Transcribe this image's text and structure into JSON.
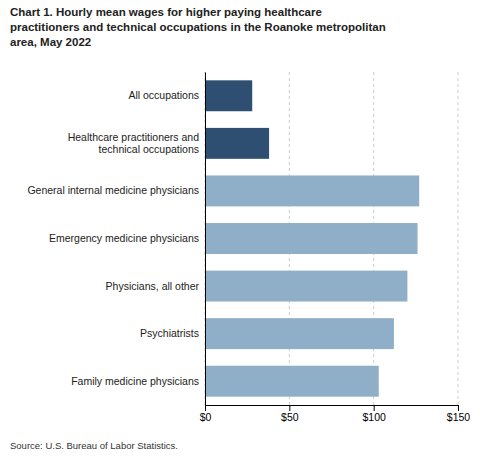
{
  "chart_data": {
    "type": "bar",
    "orientation": "horizontal",
    "title": "Chart 1. Hourly mean wages for higher paying healthcare\npractitioners and technical occupations in the Roanoke metropolitan\narea, May 2022",
    "categories": [
      "Family medicine physicians",
      "Psychiatrists",
      "Physicians, all other",
      "Emergency medicine physicians",
      "General internal medicine physicians",
      "Healthcare practitioners and\ntechnical occupations",
      "All occupations"
    ],
    "values": [
      103,
      112,
      120,
      126,
      127,
      38,
      28
    ],
    "colors": [
      "#8faec8",
      "#8faec8",
      "#8faec8",
      "#8faec8",
      "#8faec8",
      "#2e4f72",
      "#2e4f72"
    ],
    "xlim": [
      0,
      150
    ],
    "xticks": [
      {
        "value": 0,
        "label": "$0"
      },
      {
        "value": 50,
        "label": "$50"
      },
      {
        "value": 100,
        "label": "$100"
      },
      {
        "value": 150,
        "label": "$150"
      }
    ],
    "grid": true,
    "source": "Source: U.S. Bureau of Labor Statistics."
  }
}
